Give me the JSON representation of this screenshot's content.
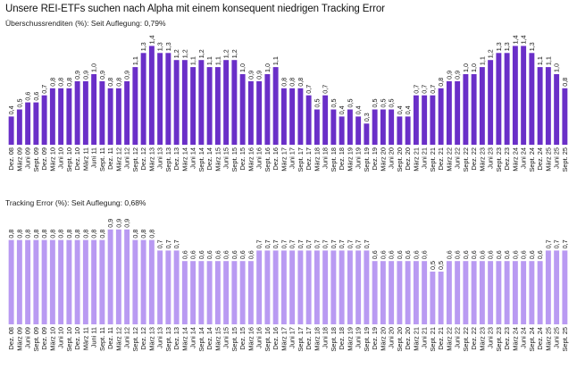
{
  "title": "Unsere REI-ETFs suchen nach Alpha mit einem konsequent niedrigen Tracking Error",
  "colors": {
    "top": "#6a2fc8",
    "bottom": "#b99af2"
  },
  "chart_data": [
    {
      "type": "bar",
      "subtitle": "Überschussrenditen (%): Seit Auflegung: 0,79%",
      "categories": [
        "Dez. 08",
        "März 09",
        "Juni 09",
        "Sept. 09",
        "Dez. 09",
        "März 10",
        "Juni 10",
        "Sept. 10",
        "Dez. 10",
        "März 11",
        "Juni 11",
        "Sept. 11",
        "Dez. 11",
        "März 12",
        "Juni 12",
        "Sept. 12",
        "Dez. 12",
        "März 13",
        "Juni 13",
        "Sept. 13",
        "Dez. 13",
        "März 14",
        "Juni 14",
        "Sept. 14",
        "Dez. 14",
        "März 15",
        "Juni 15",
        "Sept. 15",
        "Dez. 15",
        "März 16",
        "Juni 16",
        "Sept. 16",
        "Dez. 16",
        "März 17",
        "Juni 17",
        "Sept. 17",
        "Dez. 17",
        "März 18",
        "Juni 18",
        "Sept. 18",
        "Dez. 18",
        "März 19",
        "Juni 19",
        "Sept. 19",
        "Dez. 19",
        "März 20",
        "Juni 20",
        "Sept. 20",
        "Dez. 20",
        "März 21",
        "Juni 21",
        "Sept. 21",
        "Dez. 21",
        "März 22",
        "Juni 22",
        "Sept. 22",
        "Dez. 22",
        "März 23",
        "Juni 23",
        "Sept. 23",
        "Dez. 23",
        "März 24",
        "Juni 24",
        "Sept. 24",
        "Dez. 24",
        "März 25",
        "Juni 25",
        "Sept. 25"
      ],
      "values": [
        0.4,
        0.5,
        0.6,
        0.6,
        0.7,
        0.8,
        0.8,
        0.8,
        0.9,
        0.9,
        1.0,
        0.9,
        0.8,
        0.8,
        0.9,
        1.1,
        1.3,
        1.4,
        1.3,
        1.3,
        1.2,
        1.2,
        1.1,
        1.2,
        1.1,
        1.1,
        1.2,
        1.2,
        1.0,
        0.9,
        0.9,
        1.0,
        1.1,
        0.8,
        0.8,
        0.8,
        0.7,
        0.5,
        0.7,
        0.5,
        0.4,
        0.5,
        0.4,
        0.3,
        0.5,
        0.5,
        0.5,
        0.4,
        0.4,
        0.7,
        0.7,
        0.7,
        0.8,
        0.9,
        0.9,
        1.0,
        1.0,
        1.1,
        1.2,
        1.3,
        1.3,
        1.4,
        1.4,
        1.3,
        1.1,
        1.1,
        1.0,
        0.8
      ],
      "value_labels": [
        "0,4",
        "0,5",
        "0,6",
        "0,6",
        "0,7",
        "0,8",
        "0,8",
        "0,8",
        "0,9",
        "0,9",
        "1,0",
        "0,9",
        "0,8",
        "0,8",
        "0,9",
        "1,1",
        "1,3",
        "1,4",
        "1,3",
        "1,3",
        "1,2",
        "1,2",
        "1,1",
        "1,2",
        "1,1",
        "1,1",
        "1,2",
        "1,2",
        "1,0",
        "0,9",
        "0,9",
        "1,0",
        "1,1",
        "0,8",
        "0,8",
        "0,8",
        "0,7",
        "0,5",
        "0,7",
        "0,5",
        "0,4",
        "0,5",
        "0,4",
        "0,3",
        "0,5",
        "0,5",
        "0,5",
        "0,4",
        "0,4",
        "0,7",
        "0,7",
        "0,7",
        "0,8",
        "0,9",
        "0,9",
        "1,0",
        "1,0",
        "1,1",
        "1,2",
        "1,3",
        "1,3",
        "1,4",
        "1,4",
        "1,3",
        "1,1",
        "1,1",
        "1,0",
        "0,8"
      ],
      "ylim": [
        0,
        1.5
      ]
    },
    {
      "type": "bar",
      "subtitle": "Tracking Error (%): Seit Auflegung: 0,68%",
      "categories": [
        "Dez. 08",
        "März 09",
        "Juni 09",
        "Sept. 09",
        "Dez. 09",
        "März 10",
        "Juni 10",
        "Sept. 10",
        "Dez. 10",
        "März 11",
        "Juni 11",
        "Sept. 11",
        "Dez. 11",
        "März 12",
        "Juni 12",
        "Sept. 12",
        "Dez. 12",
        "März 13",
        "Juni 13",
        "Sept. 13",
        "Dez. 13",
        "März 14",
        "Juni 14",
        "Sept. 14",
        "Dez. 14",
        "März 15",
        "Juni 15",
        "Sept. 15",
        "Dez. 15",
        "März 16",
        "Juni 16",
        "Sept. 16",
        "Dez. 16",
        "März 17",
        "Juni 17",
        "Sept. 17",
        "Dez. 17",
        "März 18",
        "Juni 18",
        "Sept. 18",
        "Dez. 18",
        "März 19",
        "Juni 19",
        "Sept. 19",
        "Dez. 19",
        "März 20",
        "Juni 20",
        "Sept. 20",
        "Dez. 20",
        "März 21",
        "Juni 21",
        "Sept. 21",
        "Dez. 21",
        "März 22",
        "Juni 22",
        "Sept. 22",
        "Dez. 22",
        "März 23",
        "Juni 23",
        "Sept. 23",
        "Dez. 23",
        "März 24",
        "Juni 24",
        "Sept. 24",
        "Dez. 24",
        "März 25",
        "Juni 25",
        "Sept. 25"
      ],
      "values": [
        0.8,
        0.8,
        0.8,
        0.8,
        0.8,
        0.8,
        0.8,
        0.8,
        0.8,
        0.8,
        0.8,
        0.8,
        0.9,
        0.9,
        0.9,
        0.8,
        0.8,
        0.8,
        0.7,
        0.7,
        0.7,
        0.6,
        0.6,
        0.6,
        0.6,
        0.6,
        0.6,
        0.6,
        0.6,
        0.6,
        0.7,
        0.7,
        0.7,
        0.7,
        0.7,
        0.7,
        0.7,
        0.7,
        0.7,
        0.7,
        0.7,
        0.7,
        0.7,
        0.7,
        0.6,
        0.6,
        0.6,
        0.6,
        0.6,
        0.6,
        0.6,
        0.5,
        0.5,
        0.6,
        0.6,
        0.6,
        0.6,
        0.6,
        0.6,
        0.6,
        0.6,
        0.6,
        0.6,
        0.6,
        0.6,
        0.7,
        0.7,
        0.7
      ],
      "value_labels": [
        "0,8",
        "0,8",
        "0,8",
        "0,8",
        "0,8",
        "0,8",
        "0,8",
        "0,8",
        "0,8",
        "0,8",
        "0,8",
        "0,8",
        "0,9",
        "0,9",
        "0,9",
        "0,8",
        "0,8",
        "0,8",
        "0,7",
        "0,7",
        "0,7",
        "0,6",
        "0,6",
        "0,6",
        "0,6",
        "0,6",
        "0,6",
        "0,6",
        "0,6",
        "0,6",
        "0,7",
        "0,7",
        "0,7",
        "0,7",
        "0,7",
        "0,7",
        "0,7",
        "0,7",
        "0,7",
        "0,7",
        "0,7",
        "0,7",
        "0,7",
        "0,7",
        "0,6",
        "0,6",
        "0,6",
        "0,6",
        "0,6",
        "0,6",
        "0,6",
        "0,5",
        "0,5",
        "0,6",
        "0,6",
        "0,6",
        "0,6",
        "0,6",
        "0,6",
        "0,6",
        "0,6",
        "0,6",
        "0,6",
        "0,6",
        "0,6",
        "0,7",
        "0,7",
        "0,7"
      ],
      "ylim": [
        0,
        1.0
      ]
    }
  ]
}
